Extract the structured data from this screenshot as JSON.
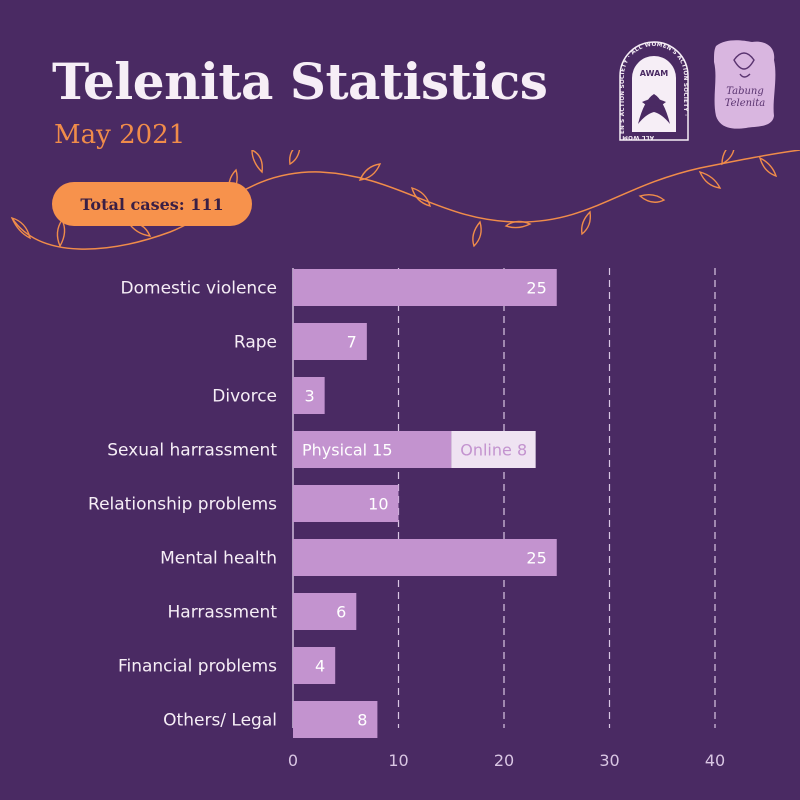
{
  "header": {
    "title": "Telenita Statistics",
    "subtitle": "May 2021",
    "total_label": "Total cases: 111"
  },
  "logos": {
    "awam_text": "AWAM",
    "awam_ring_text": "ALL WOMEN'S ACTION SOCIETY · ALL WOMEN'S ACTION SOCIETY ·",
    "tabung_text": "Tabung Telenita"
  },
  "colors": {
    "background": "#4a2a63",
    "bar": "#c393cf",
    "bar_secondary": "#efe3f2",
    "accent": "#f7924c",
    "text": "#f6eef6"
  },
  "chart_data": {
    "type": "bar",
    "orientation": "horizontal",
    "stacked": true,
    "categories": [
      "Domestic violence",
      "Rape",
      "Divorce",
      "Sexual harrassment",
      "Relationship problems",
      "Mental health",
      "Harrassment",
      "Financial problems",
      "Others/ Legal"
    ],
    "series": [
      {
        "values": [
          25,
          7,
          3,
          15,
          10,
          25,
          6,
          4,
          8
        ]
      },
      {
        "values": [
          0,
          0,
          0,
          8,
          0,
          0,
          0,
          0,
          0
        ]
      }
    ],
    "data_labels": [
      [
        "25",
        ""
      ],
      [
        "7",
        ""
      ],
      [
        "3",
        ""
      ],
      [
        "Physical 15",
        "Online 8"
      ],
      [
        "10",
        ""
      ],
      [
        "25",
        ""
      ],
      [
        "6",
        ""
      ],
      [
        "4",
        ""
      ],
      [
        "8",
        ""
      ]
    ],
    "xlim": [
      0,
      40
    ],
    "xticks": [
      0,
      10,
      20,
      30,
      40
    ],
    "grid": "vertical-dashed",
    "title": "",
    "xlabel": "",
    "ylabel": ""
  }
}
